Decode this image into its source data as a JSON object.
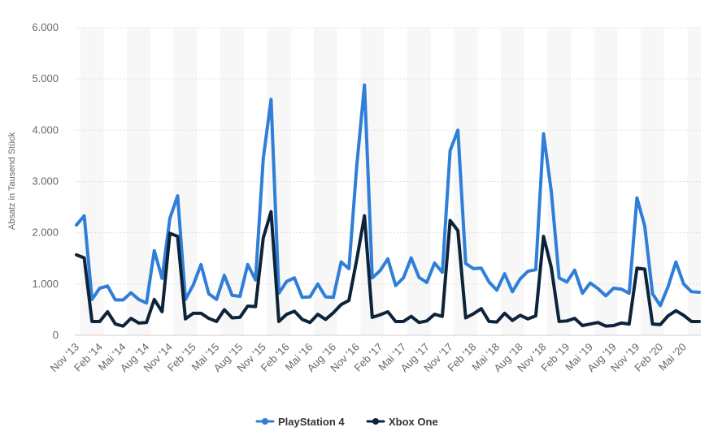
{
  "chart_data": {
    "type": "line",
    "title": "",
    "xlabel": "",
    "ylabel": "Absatz in Tausend Stück",
    "ylim": [
      0,
      6000
    ],
    "yticks": [
      0,
      1000,
      2000,
      3000,
      4000,
      5000,
      6000
    ],
    "ytick_labels": [
      "0",
      "1.000",
      "2.000",
      "3.000",
      "4.000",
      "5.000",
      "6.000"
    ],
    "x_tick_labels": [
      "Nov '13",
      "Feb '14",
      "Mai '14",
      "Aug '14",
      "Nov '14",
      "Feb '15",
      "Mai '15",
      "Aug '15",
      "Nov '15",
      "Feb '16",
      "Mai '16",
      "Aug '16",
      "Nov '16",
      "Feb '17",
      "Mai '17",
      "Aug '17",
      "Nov '17",
      "Feb '18",
      "Mai '18",
      "Aug '18",
      "Nov '18",
      "Feb '19",
      "Mai '19",
      "Aug '19",
      "Nov '19",
      "Feb '20",
      "Mai '20"
    ],
    "legend_position": "bottom-center",
    "grid": true,
    "series": [
      {
        "name": "PlayStation 4",
        "color": "#2f7ed8",
        "values": [
          2150,
          2330,
          700,
          920,
          960,
          690,
          690,
          830,
          700,
          630,
          1650,
          1110,
          2280,
          2720,
          700,
          980,
          1380,
          810,
          700,
          1170,
          780,
          760,
          1380,
          1080,
          3450,
          4600,
          820,
          1050,
          1120,
          740,
          750,
          1000,
          750,
          740,
          1430,
          1300,
          3290,
          4880,
          1120,
          1260,
          1490,
          970,
          1120,
          1510,
          1130,
          1030,
          1410,
          1230,
          3600,
          4000,
          1400,
          1300,
          1310,
          1040,
          880,
          1200,
          850,
          1100,
          1250,
          1280,
          3930,
          2800,
          1120,
          1040,
          1270,
          820,
          1020,
          910,
          770,
          920,
          900,
          820,
          2680,
          2130,
          810,
          580,
          950,
          1430,
          1000,
          850,
          840
        ]
      },
      {
        "name": "Xbox One",
        "color": "#0d233a",
        "values": [
          1570,
          1510,
          270,
          270,
          460,
          220,
          180,
          330,
          240,
          250,
          700,
          460,
          1990,
          1930,
          320,
          430,
          430,
          330,
          270,
          500,
          340,
          350,
          570,
          560,
          1900,
          2410,
          270,
          410,
          470,
          310,
          250,
          410,
          310,
          440,
          600,
          680,
          1470,
          2330,
          350,
          400,
          460,
          270,
          270,
          370,
          250,
          280,
          410,
          370,
          2240,
          2040,
          340,
          420,
          520,
          270,
          260,
          430,
          290,
          390,
          320,
          380,
          1930,
          1320,
          270,
          280,
          330,
          190,
          220,
          250,
          180,
          190,
          240,
          220,
          1310,
          1290,
          220,
          210,
          380,
          480,
          390,
          270,
          270
        ]
      }
    ]
  }
}
